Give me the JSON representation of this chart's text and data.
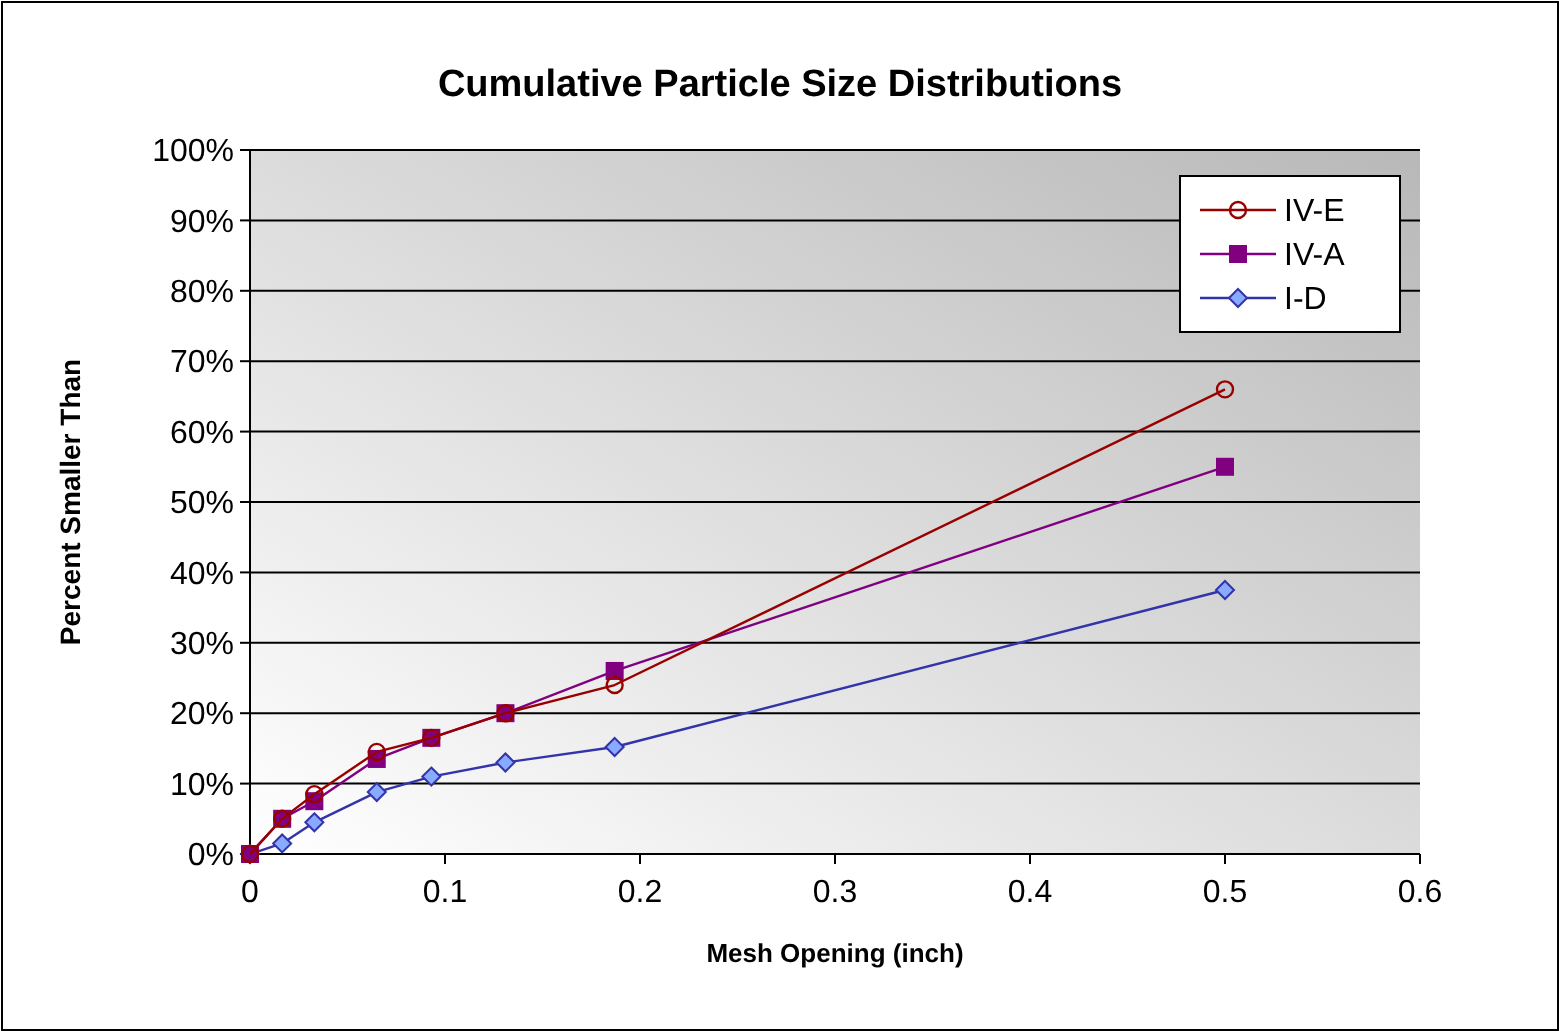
{
  "chart_data": {
    "type": "line",
    "title": "Cumulative Particle Size Distributions",
    "xlabel": "Mesh Opening  (inch)",
    "ylabel": "Percent Smaller Than",
    "x": [
      0,
      0.0165,
      0.033,
      0.065,
      0.093,
      0.131,
      0.187,
      0.5
    ],
    "series": [
      {
        "name": "IV-E",
        "color": "#990000",
        "marker": "circle",
        "values": [
          0,
          5,
          8.5,
          14.5,
          16.5,
          20,
          24,
          66
        ]
      },
      {
        "name": "IV-A",
        "color": "#800080",
        "marker": "square",
        "values": [
          0,
          5,
          7.5,
          13.5,
          16.5,
          20,
          26,
          55
        ]
      },
      {
        "name": "I-D",
        "color": "#3333aa",
        "marker": "diamond",
        "values": [
          0,
          1.5,
          4.5,
          8.8,
          11,
          13,
          15.2,
          37.5
        ]
      }
    ],
    "xlim": [
      0,
      0.6
    ],
    "xticks": [
      0,
      0.1,
      0.2,
      0.3,
      0.4,
      0.5,
      0.6
    ],
    "ylim": [
      0,
      100
    ],
    "yticks": [
      {
        "value": 0,
        "label": "0%"
      },
      {
        "value": 10,
        "label": "10%"
      },
      {
        "value": 20,
        "label": "20%"
      },
      {
        "value": 30,
        "label": "30%"
      },
      {
        "value": 40,
        "label": "40%"
      },
      {
        "value": 50,
        "label": "50%"
      },
      {
        "value": 60,
        "label": "60%"
      },
      {
        "value": 70,
        "label": "70%"
      },
      {
        "value": 80,
        "label": "80%"
      },
      {
        "value": 90,
        "label": "90%"
      },
      {
        "value": 100,
        "label": "100%"
      }
    ],
    "grid": "y",
    "legend": "top right"
  }
}
